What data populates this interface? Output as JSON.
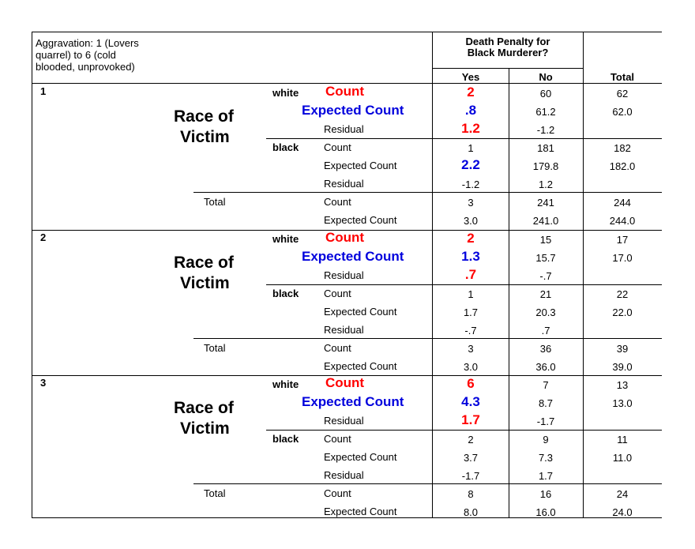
{
  "table": {
    "header": {
      "row_var": "Aggravation: 1 (Lovers quarrel) to 6 (cold blooded, unprovoked)",
      "row_var_lines": [
        "Aggravation: 1 (Lovers",
        "quarrel) to 6 (cold",
        "blooded, unprovoked)"
      ],
      "col_var_lines": [
        "Death Penalty for",
        "Black Murderer?"
      ],
      "yes": "Yes",
      "no": "No",
      "total": "Total"
    },
    "race_label_lines": [
      "Race of",
      "Victim"
    ],
    "levels": [
      {
        "id": "1",
        "white": {
          "label": "white",
          "count": [
            "Count",
            "2",
            "60",
            "62"
          ],
          "expected": [
            "Expected Count",
            ".8",
            "61.2",
            "62.0"
          ],
          "residual": [
            "Residual",
            "1.2",
            "-1.2",
            ""
          ]
        },
        "black": {
          "label": "black",
          "count": [
            "Count",
            "1",
            "181",
            "182"
          ],
          "expected": [
            "Expected Count",
            "2.2",
            "179.8",
            "182.0"
          ],
          "residual": [
            "Residual",
            "-1.2",
            "1.2",
            ""
          ]
        },
        "total": {
          "label": "Total",
          "count": [
            "Count",
            "3",
            "241",
            "244"
          ],
          "expected": [
            "Expected Count",
            "3.0",
            "241.0",
            "244.0"
          ]
        }
      },
      {
        "id": "2",
        "white": {
          "label": "white",
          "count": [
            "Count",
            "2",
            "15",
            "17"
          ],
          "expected": [
            "Expected Count",
            "1.3",
            "15.7",
            "17.0"
          ],
          "residual": [
            "Residual",
            ".7",
            "-.7",
            ""
          ]
        },
        "black": {
          "label": "black",
          "count": [
            "Count",
            "1",
            "21",
            "22"
          ],
          "expected": [
            "Expected Count",
            "1.7",
            "20.3",
            "22.0"
          ],
          "residual": [
            "Residual",
            "-.7",
            ".7",
            ""
          ]
        },
        "total": {
          "label": "Total",
          "count": [
            "Count",
            "3",
            "36",
            "39"
          ],
          "expected": [
            "Expected Count",
            "3.0",
            "36.0",
            "39.0"
          ]
        }
      },
      {
        "id": "3",
        "white": {
          "label": "white",
          "count": [
            "Count",
            "6",
            "7",
            "13"
          ],
          "expected": [
            "Expected Count",
            "4.3",
            "8.7",
            "13.0"
          ],
          "residual": [
            "Residual",
            "1.7",
            "-1.7",
            ""
          ]
        },
        "black": {
          "label": "black",
          "count": [
            "Count",
            "2",
            "9",
            "11"
          ],
          "expected": [
            "Expected Count",
            "3.7",
            "7.3",
            "11.0"
          ],
          "residual": [
            "Residual",
            "-1.7",
            "1.7",
            ""
          ]
        },
        "total": {
          "label": "Total",
          "count": [
            "Count",
            "8",
            "16",
            "24"
          ],
          "expected": [
            "Expected Count",
            "8.0",
            "16.0",
            "24.0"
          ]
        }
      }
    ],
    "colors": {
      "highlight_red": "#ff0000",
      "highlight_blue": "#0000dd"
    }
  }
}
